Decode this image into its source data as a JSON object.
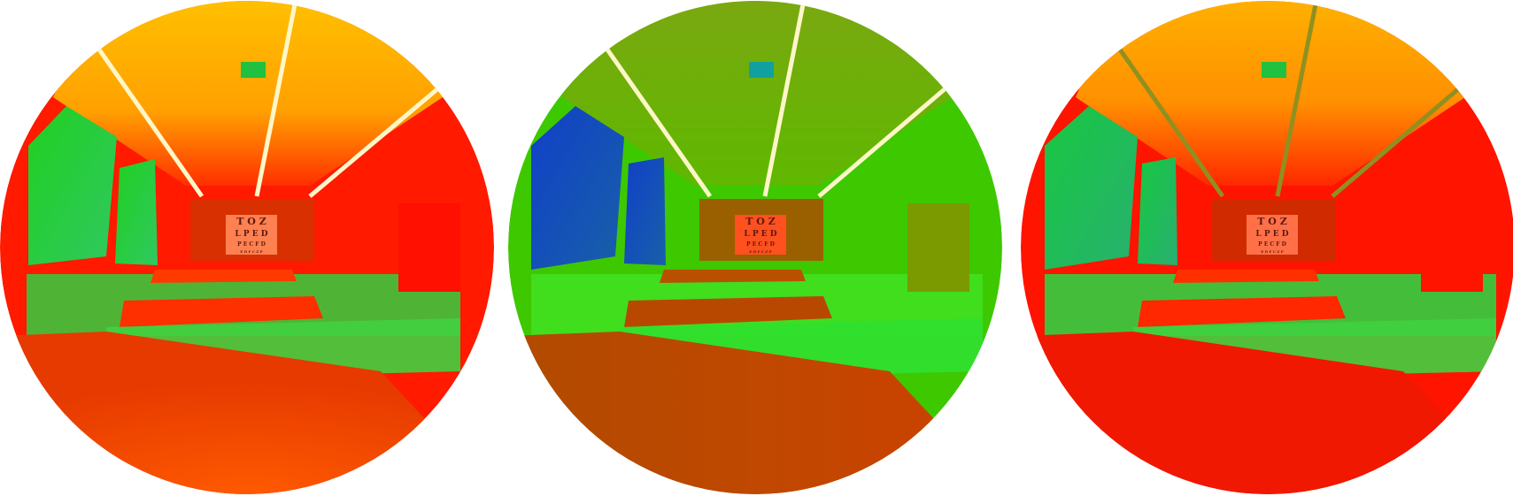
{
  "image": {
    "panel_count": 3,
    "panels": [
      {
        "name": "left-fisheye",
        "palette": "warm-red-dominant"
      },
      {
        "name": "center-fisheye",
        "palette": "green-dominant"
      },
      {
        "name": "right-fisheye",
        "palette": "red-dominant"
      }
    ],
    "eye_chart_lines": [
      "T O Z",
      "L P E D",
      "P E C F D",
      "E D F C Z P"
    ]
  }
}
